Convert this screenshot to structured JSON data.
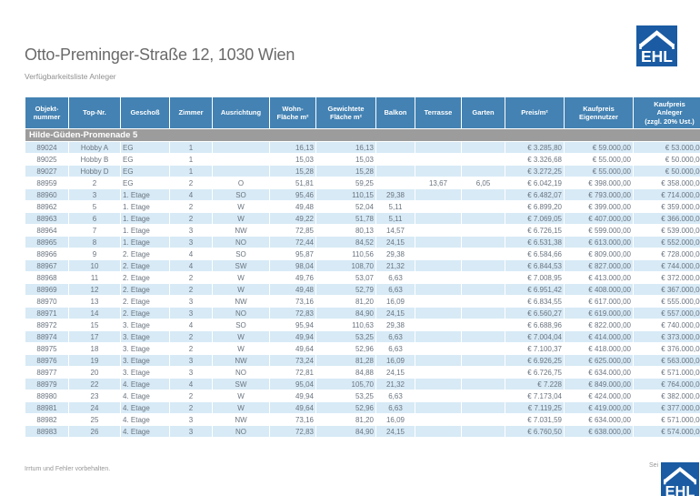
{
  "page": {
    "title": "Otto-Preminger-Straße 12, 1030 Wien",
    "subtitle": "Verfügbarkeitsliste Anleger",
    "footer_left": "Irrtum und Fehler vorbehalten.",
    "footer_right": "Sei",
    "brand": "EHL"
  },
  "colors": {
    "header_blue": "#4382b3",
    "section_gray": "#9c9c9c",
    "row_blue": "#d7eaf6",
    "logo_blue": "#1a5ba3",
    "cell_text": "#6b7580"
  },
  "table": {
    "section": "Hilde-Güden-Promenade 5",
    "column_keys": [
      "objektnummer",
      "top-nr",
      "geschoss",
      "zimmer",
      "ausrichtung",
      "wohnflaeche",
      "gewichtete-flaeche",
      "balkon",
      "terrasse",
      "garten",
      "preis-m2",
      "kaufpreis-eigennutzer",
      "kaufpreis-anleger"
    ],
    "columns": [
      "Objekt-\nnummer",
      "Top-Nr.",
      "Geschoß",
      "Zimmer",
      "Ausrichtung",
      "Wohn-\nFläche m²",
      "Gewichtete\nFläche m²",
      "Balkon",
      "Terrasse",
      "Garten",
      "Preis/m²",
      "Kaufpreis\nEigennutzer",
      "Kaufpreis\nAnleger\n(zzgl. 20% Ust.)"
    ],
    "rows": [
      [
        "89024",
        "Hobby A",
        "EG",
        "1",
        "",
        "16,13",
        "16,13",
        "",
        "",
        "",
        "€ 3.285,80",
        "€ 59.000,00",
        "€ 53.000,00"
      ],
      [
        "89025",
        "Hobby B",
        "EG",
        "1",
        "",
        "15,03",
        "15,03",
        "",
        "",
        "",
        "€ 3.326,68",
        "€ 55.000,00",
        "€ 50.000,00"
      ],
      [
        "89027",
        "Hobby D",
        "EG",
        "1",
        "",
        "15,28",
        "15,28",
        "",
        "",
        "",
        "€ 3.272,25",
        "€ 55.000,00",
        "€ 50.000,00"
      ],
      [
        "88959",
        "2",
        "EG",
        "2",
        "O",
        "51,81",
        "59,25",
        "",
        "13,67",
        "6,05",
        "€ 6.042,19",
        "€ 398.000,00",
        "€ 358.000,00"
      ],
      [
        "88960",
        "3",
        "1. Etage",
        "4",
        "SO",
        "95,46",
        "110,15",
        "29,38",
        "",
        "",
        "€ 6.482,07",
        "€ 793.000,00",
        "€ 714.000,00"
      ],
      [
        "88962",
        "5",
        "1. Etage",
        "2",
        "W",
        "49,48",
        "52,04",
        "5,11",
        "",
        "",
        "€ 6.899,20",
        "€ 399.000,00",
        "€ 359.000,00"
      ],
      [
        "88963",
        "6",
        "1. Etage",
        "2",
        "W",
        "49,22",
        "51,78",
        "5,11",
        "",
        "",
        "€ 7.069,05",
        "€ 407.000,00",
        "€ 366.000,00"
      ],
      [
        "88964",
        "7",
        "1. Etage",
        "3",
        "NW",
        "72,85",
        "80,13",
        "14,57",
        "",
        "",
        "€ 6.726,15",
        "€ 599.000,00",
        "€ 539.000,00"
      ],
      [
        "88965",
        "8",
        "1. Etage",
        "3",
        "NO",
        "72,44",
        "84,52",
        "24,15",
        "",
        "",
        "€ 6.531,38",
        "€ 613.000,00",
        "€ 552.000,00"
      ],
      [
        "88966",
        "9",
        "2. Etage",
        "4",
        "SO",
        "95,87",
        "110,56",
        "29,38",
        "",
        "",
        "€ 6.584,66",
        "€ 809.000,00",
        "€ 728.000,00"
      ],
      [
        "88967",
        "10",
        "2. Etage",
        "4",
        "SW",
        "98,04",
        "108,70",
        "21,32",
        "",
        "",
        "€ 6.844,53",
        "€ 827.000,00",
        "€ 744.000,00"
      ],
      [
        "88968",
        "11",
        "2. Etage",
        "2",
        "W",
        "49,76",
        "53,07",
        "6,63",
        "",
        "",
        "€ 7.008,95",
        "€ 413.000,00",
        "€ 372.000,00"
      ],
      [
        "88969",
        "12",
        "2. Etage",
        "2",
        "W",
        "49,48",
        "52,79",
        "6,63",
        "",
        "",
        "€ 6.951,42",
        "€ 408.000,00",
        "€ 367.000,00"
      ],
      [
        "88970",
        "13",
        "2. Etage",
        "3",
        "NW",
        "73,16",
        "81,20",
        "16,09",
        "",
        "",
        "€ 6.834,55",
        "€ 617.000,00",
        "€ 555.000,00"
      ],
      [
        "88971",
        "14",
        "2. Etage",
        "3",
        "NO",
        "72,83",
        "84,90",
        "24,15",
        "",
        "",
        "€ 6.560,27",
        "€ 619.000,00",
        "€ 557.000,00"
      ],
      [
        "88972",
        "15",
        "3. Etage",
        "4",
        "SO",
        "95,94",
        "110,63",
        "29,38",
        "",
        "",
        "€ 6.688,96",
        "€ 822.000,00",
        "€ 740.000,00"
      ],
      [
        "88974",
        "17",
        "3. Etage",
        "2",
        "W",
        "49,94",
        "53,25",
        "6,63",
        "",
        "",
        "€ 7.004,04",
        "€ 414.000,00",
        "€ 373.000,00"
      ],
      [
        "88975",
        "18",
        "3. Etage",
        "2",
        "W",
        "49,64",
        "52,96",
        "6,63",
        "",
        "",
        "€ 7.100,37",
        "€ 418.000,00",
        "€ 376.000,00"
      ],
      [
        "88976",
        "19",
        "3. Etage",
        "3",
        "NW",
        "73,24",
        "81,28",
        "16,09",
        "",
        "",
        "€ 6.926,25",
        "€ 625.000,00",
        "€ 563.000,00"
      ],
      [
        "88977",
        "20",
        "3. Etage",
        "3",
        "NO",
        "72,81",
        "84,88",
        "24,15",
        "",
        "",
        "€ 6.726,75",
        "€ 634.000,00",
        "€ 571.000,00"
      ],
      [
        "88979",
        "22",
        "4. Etage",
        "4",
        "SW",
        "95,04",
        "105,70",
        "21,32",
        "",
        "",
        "€ 7.228",
        "€ 849.000,00",
        "€ 764.000,00"
      ],
      [
        "88980",
        "23",
        "4. Etage",
        "2",
        "W",
        "49,94",
        "53,25",
        "6,63",
        "",
        "",
        "€ 7.173,04",
        "€ 424.000,00",
        "€ 382.000,00"
      ],
      [
        "88981",
        "24",
        "4. Etage",
        "2",
        "W",
        "49,64",
        "52,96",
        "6,63",
        "",
        "",
        "€ 7.119,25",
        "€ 419.000,00",
        "€ 377.000,00"
      ],
      [
        "88982",
        "25",
        "4. Etage",
        "3",
        "NW",
        "73,16",
        "81,20",
        "16,09",
        "",
        "",
        "€ 7.031,59",
        "€ 634.000,00",
        "€ 571.000,00"
      ],
      [
        "88983",
        "26",
        "4. Etage",
        "3",
        "NO",
        "72,83",
        "84,90",
        "24,15",
        "",
        "",
        "€ 6.760,50",
        "€ 638.000,00",
        "€ 574.000,00"
      ]
    ]
  }
}
